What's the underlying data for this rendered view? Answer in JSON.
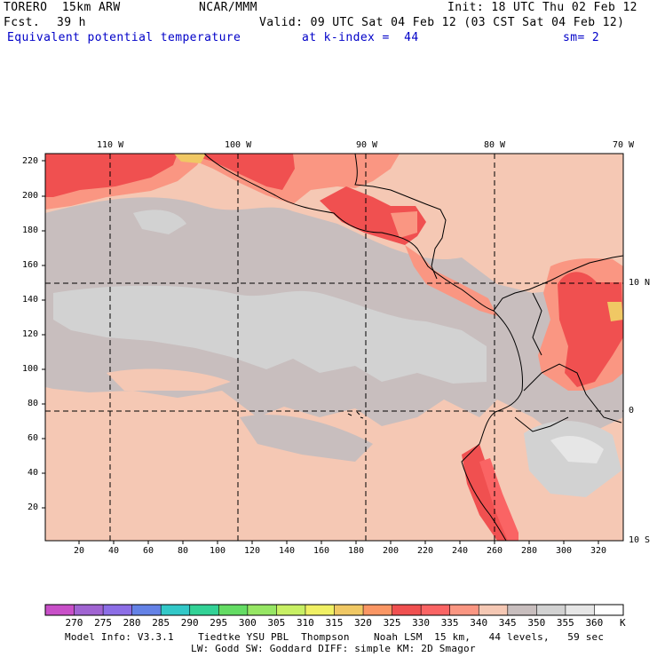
{
  "header": {
    "model": "TORERO  15km ARW",
    "center": "NCAR/MMM",
    "init": "Init: 18 UTC Thu 02 Feb 12",
    "fcst_label": "Fcst.",
    "fcst_hours": "39 h",
    "valid": "Valid: 09 UTC Sat 04 Feb 12 (03 CST Sat 04 Feb 12)",
    "field": "Equivalent potential temperature",
    "level": "at k-index =  44",
    "smoothing": "sm= 2"
  },
  "map": {
    "lon_labels": [
      "110 W",
      "100 W",
      "90 W",
      "80 W",
      "70 W"
    ],
    "lat_labels": [
      "10 N",
      "0",
      "10 S"
    ],
    "y_ticks": [
      "220",
      "200",
      "180",
      "160",
      "140",
      "120",
      "100",
      "80",
      "60",
      "40",
      "20"
    ],
    "x_ticks": [
      "20",
      "40",
      "60",
      "80",
      "100",
      "120",
      "140",
      "160",
      "180",
      "200",
      "220",
      "240",
      "260",
      "280",
      "300",
      "320"
    ]
  },
  "colorbar": {
    "values": [
      "270",
      "275",
      "280",
      "285",
      "290",
      "295",
      "300",
      "305",
      "310",
      "315",
      "320",
      "325",
      "330",
      "335",
      "340",
      "345",
      "350",
      "355",
      "360"
    ],
    "unit": "K",
    "colors": [
      "#c84fc8",
      "#a064d2",
      "#8c6ee6",
      "#6482e6",
      "#32c8c8",
      "#32d296",
      "#64dc64",
      "#96e664",
      "#c8f064",
      "#f0f064",
      "#f0c864",
      "#fa9664",
      "#f05050",
      "#fa6464",
      "#fa9682",
      "#f5c8b4",
      "#c8bebe",
      "#d2d2d2",
      "#e6e6e6",
      "#ffffff"
    ]
  },
  "footer": {
    "line1": "Model Info: V3.3.1    Tiedtke YSU PBL  Thompson    Noah LSM  15 km,   44 levels,   59 sec",
    "line2": "LW: Godd SW: Goddard DIFF: simple KM: 2D Smagor"
  }
}
